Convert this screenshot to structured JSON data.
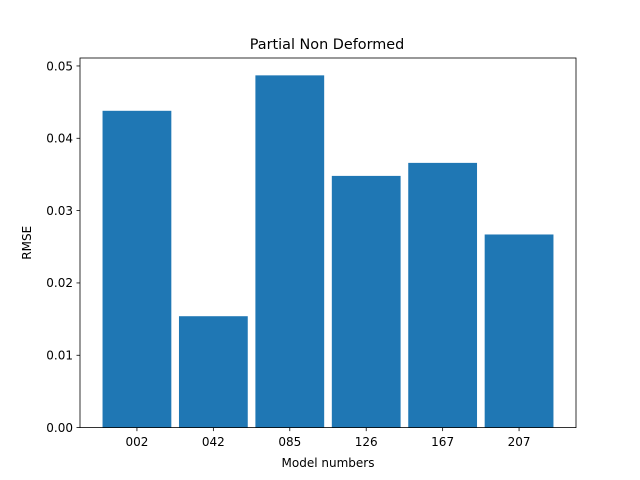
{
  "chart_data": {
    "type": "bar",
    "title": "Partial Non Deformed",
    "xlabel": "Model numbers",
    "ylabel": "RMSE",
    "categories": [
      "002",
      "042",
      "085",
      "126",
      "167",
      "207"
    ],
    "values": [
      0.0438,
      0.0154,
      0.0487,
      0.0348,
      0.0366,
      0.0267
    ],
    "ylim": [
      0,
      0.0511
    ],
    "yticks": [
      0.0,
      0.01,
      0.02,
      0.03,
      0.04,
      0.05
    ],
    "ytick_labels": [
      "0.00",
      "0.01",
      "0.02",
      "0.03",
      "0.04",
      "0.05"
    ],
    "bar_color": "#1f77b4",
    "grid": false,
    "legend": "none"
  }
}
